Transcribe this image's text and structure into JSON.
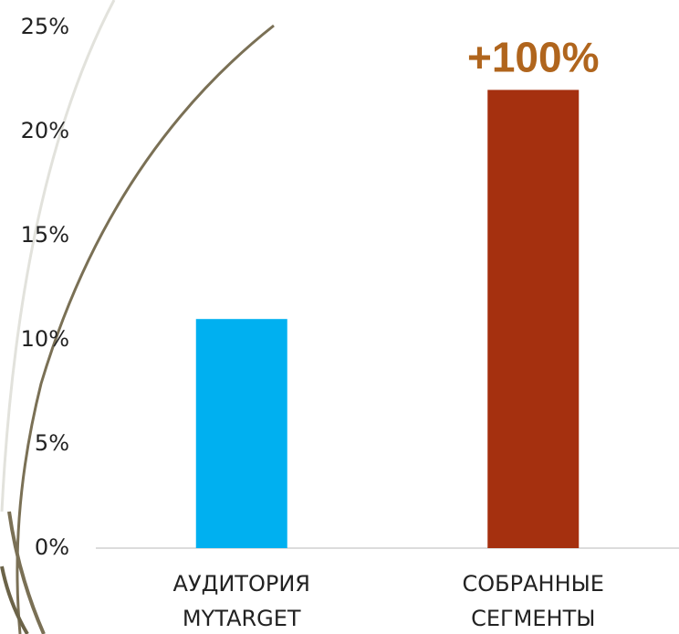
{
  "chart_data": {
    "type": "bar",
    "categories": [
      "АУДИТОРИЯ MYTARGET",
      "СОБРАННЫЕ СЕГМЕНТЫ"
    ],
    "values": [
      11,
      22
    ],
    "colors": [
      "#00b0f0",
      "#a5300f"
    ],
    "annotation": {
      "text": "+100%",
      "color": "#b0651d",
      "category": 1
    },
    "ylim": [
      0,
      25
    ],
    "yticks": [
      {
        "value": 0,
        "label": "0%"
      },
      {
        "value": 5,
        "label": "5%"
      },
      {
        "value": 10,
        "label": "10%"
      },
      {
        "value": 15,
        "label": "15%"
      },
      {
        "value": 20,
        "label": "20%"
      },
      {
        "value": 25,
        "label": "25%"
      }
    ],
    "grid": false
  }
}
